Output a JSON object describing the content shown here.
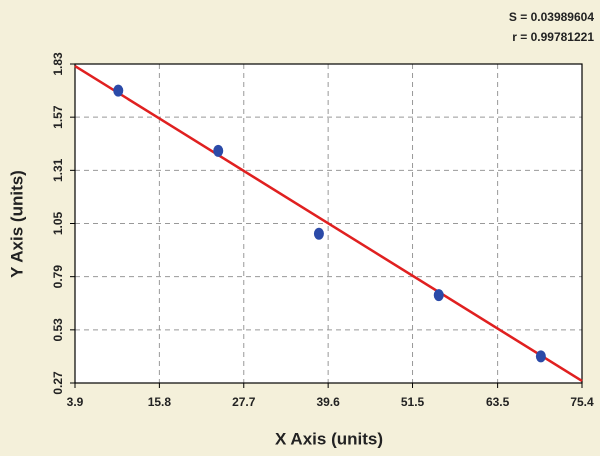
{
  "chart_data": {
    "type": "scatter",
    "annotations": [
      "S = 0.03989604",
      "r = 0.99781221"
    ],
    "x_label": "X Axis (units)",
    "y_label": "Y Axis (units)",
    "x": [
      10.0,
      24.1,
      38.3,
      55.2,
      69.6
    ],
    "series": [
      {
        "color": "#2b4aa8",
        "values": [
          1.7,
          1.405,
          1.0,
          0.7,
          0.4
        ]
      }
    ],
    "fit": {
      "x": [
        3.9,
        75.4
      ],
      "values": [
        1.82,
        0.28
      ],
      "color": "#e02020"
    },
    "xlim": [
      3.9,
      75.4
    ],
    "xticks": [
      3.9,
      15.8,
      27.7,
      39.6,
      51.5,
      63.5,
      75.4
    ],
    "ylim": [
      0.27,
      1.83
    ],
    "yticks": [
      0.27,
      0.53,
      0.79,
      1.05,
      1.31,
      1.57,
      1.83
    ],
    "grid": true
  }
}
